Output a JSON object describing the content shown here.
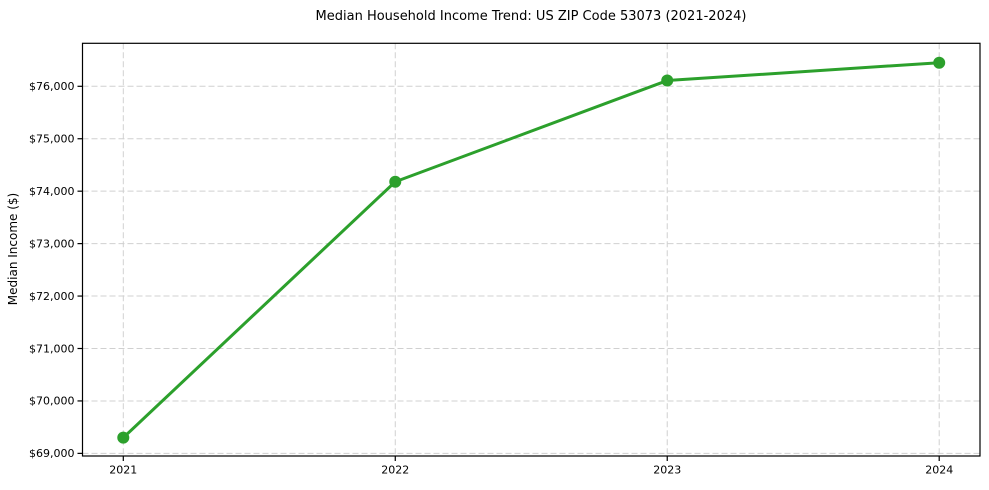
{
  "chart_data": {
    "type": "line",
    "title": "Median Household Income Trend: US ZIP Code 53073 (2021-2024)",
    "xlabel": "",
    "ylabel": "Median Income ($)",
    "x": [
      2021,
      2022,
      2023,
      2024
    ],
    "x_tick_labels": [
      "2021",
      "2022",
      "2023",
      "2024"
    ],
    "values": [
      69300,
      74180,
      76110,
      76450
    ],
    "series_name": "Median household income",
    "y_ticks": [
      69000,
      70000,
      71000,
      72000,
      73000,
      74000,
      75000,
      76000
    ],
    "y_tick_labels": [
      "$69,000",
      "$70,000",
      "$71,000",
      "$72,000",
      "$73,000",
      "$74,000",
      "$75,000",
      "$76,000"
    ],
    "xlim": [
      2020.85,
      2024.15
    ],
    "ylim": [
      68950,
      76820
    ],
    "grid": true,
    "grid_style": "dashed",
    "legend_position": "none",
    "colors": {
      "line": "#2ca02c",
      "marker": "#2ca02c",
      "grid": "#d0d0d0",
      "spine": "#000000",
      "background": "#ffffff"
    }
  }
}
